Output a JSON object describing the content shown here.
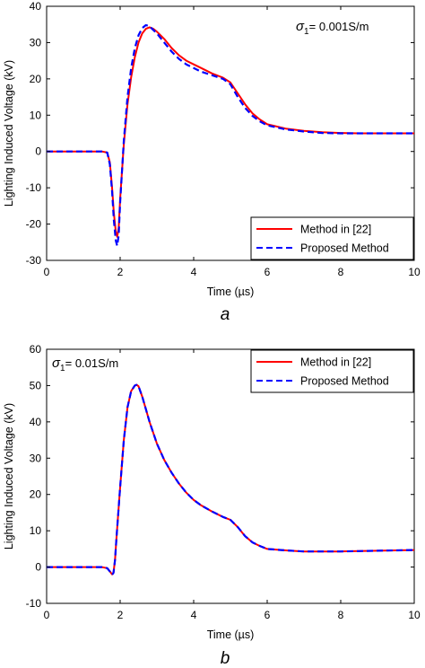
{
  "chart_data": [
    {
      "type": "line",
      "panel_label": "a",
      "xlabel": "Time (µs)",
      "ylabel": "Lighting Induced Voltage (kV)",
      "xlim": [
        0,
        10
      ],
      "ylim": [
        -30,
        40
      ],
      "xticks": [
        0,
        2,
        4,
        6,
        8,
        10
      ],
      "yticks": [
        -30,
        -20,
        -10,
        0,
        10,
        20,
        30,
        40
      ],
      "grid": false,
      "legend_position": "bottom-right",
      "annotation": {
        "symbol": "σ",
        "subscript": "1",
        "text": "= 0.001S/m",
        "position": "top-right"
      },
      "series": [
        {
          "name": "Method in [22]",
          "color": "#ff0000",
          "dash": "solid",
          "x": [
            0,
            0.5,
            1.0,
            1.5,
            1.65,
            1.72,
            1.78,
            1.83,
            1.88,
            1.92,
            1.96,
            2.0,
            2.1,
            2.2,
            2.3,
            2.4,
            2.5,
            2.6,
            2.7,
            2.8,
            2.9,
            3.0,
            3.2,
            3.4,
            3.6,
            3.8,
            4.0,
            4.2,
            4.5,
            4.8,
            5.0,
            5.2,
            5.4,
            5.6,
            5.8,
            6.0,
            6.5,
            7.0,
            7.5,
            8.0,
            8.5,
            9.0,
            9.5,
            10.0
          ],
          "y": [
            0,
            0,
            0,
            0,
            -0.3,
            -3,
            -10,
            -17,
            -22,
            -23.5,
            -21,
            -13,
            2,
            13,
            20.5,
            26,
            30,
            32.5,
            33.8,
            34.2,
            33.8,
            33,
            31,
            28.5,
            26.5,
            25,
            24,
            23,
            21.5,
            20.3,
            19,
            16,
            13,
            10.5,
            8.8,
            7.5,
            6.3,
            5.7,
            5.3,
            5.1,
            5.0,
            5.0,
            5.0,
            5.0
          ]
        },
        {
          "name": "Proposed Method",
          "color": "#0000ff",
          "dash": "dashed",
          "x": [
            0,
            0.5,
            1.0,
            1.5,
            1.65,
            1.72,
            1.78,
            1.83,
            1.88,
            1.92,
            1.96,
            2.0,
            2.1,
            2.2,
            2.3,
            2.4,
            2.5,
            2.6,
            2.7,
            2.8,
            2.9,
            3.0,
            3.2,
            3.4,
            3.6,
            3.8,
            4.0,
            4.2,
            4.5,
            4.8,
            5.0,
            5.2,
            5.4,
            5.6,
            5.8,
            6.0,
            6.5,
            7.0,
            7.5,
            8.0,
            8.5,
            9.0,
            9.5,
            10.0
          ],
          "y": [
            0,
            0,
            0,
            0,
            -0.3,
            -3.5,
            -11,
            -19,
            -24.5,
            -26,
            -23,
            -14,
            3,
            15,
            23,
            28.5,
            32,
            34,
            34.8,
            34.5,
            33.5,
            32.5,
            30,
            27.5,
            25.5,
            24,
            23,
            22,
            21,
            20,
            18.5,
            15,
            12,
            9.8,
            8.3,
            7.2,
            6.1,
            5.5,
            5.1,
            5.0,
            5.0,
            5.0,
            5.0,
            5.0
          ]
        }
      ]
    },
    {
      "type": "line",
      "panel_label": "b",
      "xlabel": "Time (µs)",
      "ylabel": "Lighting Induced Voltage (kV)",
      "xlim": [
        0,
        10
      ],
      "ylim": [
        -10,
        60
      ],
      "xticks": [
        0,
        2,
        4,
        6,
        8,
        10
      ],
      "yticks": [
        -10,
        0,
        10,
        20,
        30,
        40,
        50,
        60
      ],
      "grid": false,
      "legend_position": "top-right",
      "annotation": {
        "symbol": "σ",
        "subscript": "1",
        "text": "= 0.01S/m",
        "position": "top-left"
      },
      "series": [
        {
          "name": "Method in [22]",
          "color": "#ff0000",
          "dash": "solid",
          "x": [
            0,
            0.5,
            1.0,
            1.5,
            1.65,
            1.72,
            1.78,
            1.82,
            1.86,
            1.9,
            2.0,
            2.1,
            2.2,
            2.3,
            2.4,
            2.45,
            2.5,
            2.6,
            2.7,
            2.8,
            3.0,
            3.2,
            3.4,
            3.6,
            3.8,
            4.0,
            4.2,
            4.5,
            4.8,
            5.0,
            5.2,
            5.4,
            5.6,
            5.8,
            6.0,
            6.5,
            7.0,
            7.5,
            8.0,
            8.5,
            9.0,
            9.5,
            10.0
          ],
          "y": [
            0,
            0,
            0,
            0,
            -0.3,
            -1.2,
            -2.0,
            -1.5,
            2,
            8,
            22,
            35,
            44,
            48.5,
            50,
            50.2,
            49.8,
            47,
            43.5,
            40,
            34,
            29.5,
            26,
            23,
            20.5,
            18.5,
            17,
            15.3,
            13.8,
            13,
            11,
            8.5,
            6.8,
            5.8,
            5.0,
            4.6,
            4.3,
            4.3,
            4.3,
            4.4,
            4.5,
            4.6,
            4.7
          ]
        },
        {
          "name": "Proposed Method",
          "color": "#0000ff",
          "dash": "dashed",
          "x": [
            0,
            0.5,
            1.0,
            1.5,
            1.65,
            1.72,
            1.78,
            1.82,
            1.86,
            1.9,
            2.0,
            2.1,
            2.2,
            2.3,
            2.4,
            2.45,
            2.5,
            2.6,
            2.7,
            2.8,
            3.0,
            3.2,
            3.4,
            3.6,
            3.8,
            4.0,
            4.2,
            4.5,
            4.8,
            5.0,
            5.2,
            5.4,
            5.6,
            5.8,
            6.0,
            6.5,
            7.0,
            7.5,
            8.0,
            8.5,
            9.0,
            9.5,
            10.0
          ],
          "y": [
            0,
            0,
            0,
            0,
            -0.3,
            -1.2,
            -2.1,
            -1.6,
            2,
            8,
            22,
            35,
            44,
            48.5,
            50,
            50.2,
            49.8,
            47,
            43.5,
            40,
            34,
            29.5,
            26,
            23,
            20.5,
            18.5,
            17,
            15.3,
            13.8,
            13,
            11,
            8.5,
            6.8,
            5.8,
            5.0,
            4.6,
            4.3,
            4.3,
            4.3,
            4.4,
            4.5,
            4.6,
            4.7
          ]
        }
      ]
    }
  ]
}
